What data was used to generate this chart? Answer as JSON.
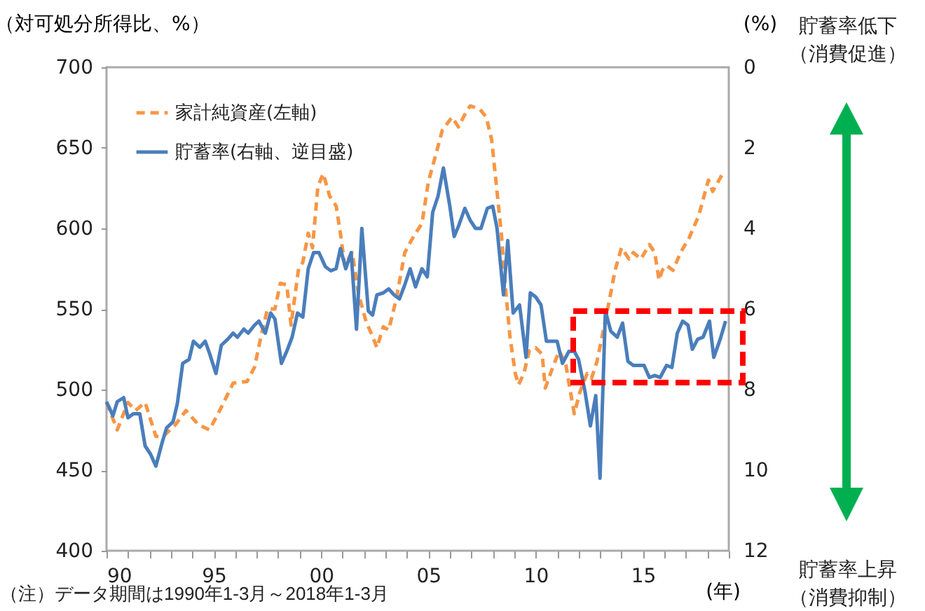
{
  "chart_data": {
    "type": "line",
    "ylabel": "（対可処分所得比、%）",
    "y2label": "(%)",
    "xlabel": "(年)",
    "xlim": [
      1990,
      2019
    ],
    "xticks": [
      {
        "value": 1990,
        "label": "90"
      },
      {
        "value": 1991,
        "label": null
      },
      {
        "value": 1992,
        "label": null
      },
      {
        "value": 1993,
        "label": null
      },
      {
        "value": 1994,
        "label": null
      },
      {
        "value": 1995,
        "label": "95"
      },
      {
        "value": 1996,
        "label": null
      },
      {
        "value": 1997,
        "label": null
      },
      {
        "value": 1998,
        "label": null
      },
      {
        "value": 1999,
        "label": null
      },
      {
        "value": 2000,
        "label": "00"
      },
      {
        "value": 2001,
        "label": null
      },
      {
        "value": 2002,
        "label": null
      },
      {
        "value": 2003,
        "label": null
      },
      {
        "value": 2004,
        "label": null
      },
      {
        "value": 2005,
        "label": "05"
      },
      {
        "value": 2006,
        "label": null
      },
      {
        "value": 2007,
        "label": null
      },
      {
        "value": 2008,
        "label": null
      },
      {
        "value": 2009,
        "label": null
      },
      {
        "value": 2010,
        "label": "10"
      },
      {
        "value": 2011,
        "label": null
      },
      {
        "value": 2012,
        "label": null
      },
      {
        "value": 2013,
        "label": null
      },
      {
        "value": 2014,
        "label": null
      },
      {
        "value": 2015,
        "label": "15"
      },
      {
        "value": 2016,
        "label": null
      },
      {
        "value": 2017,
        "label": null
      },
      {
        "value": 2018,
        "label": null
      },
      {
        "value": 2019,
        "label": null
      }
    ],
    "ylim": [
      400,
      700
    ],
    "yticks": [
      400,
      450,
      500,
      550,
      600,
      650,
      700
    ],
    "y2lim": [
      12,
      0
    ],
    "y2ticks": [
      0,
      2,
      4,
      6,
      8,
      10,
      12
    ],
    "grid": false,
    "legend": "top left",
    "annotations": [
      "貯蓄率低下（消費促進）",
      "貯蓄率上昇（消費抑制）",
      "（注）データ期間は1990年1-3月～2018年1-3月"
    ],
    "series": [
      {
        "name": "家計純資産(左軸)",
        "color": "#f79646",
        "line_style": "dashed",
        "x": [
          1990.0,
          1990.5,
          1991.0,
          1991.35,
          1991.8,
          1992.3,
          1992.65,
          1993.2,
          1993.7,
          1994.3,
          1994.8,
          1995.35,
          1995.9,
          1996.55,
          1996.9,
          1997.2,
          1997.5,
          1997.85,
          1998.1,
          1998.4,
          1998.6,
          1998.95,
          1999.15,
          1999.4,
          1999.6,
          1999.85,
          2000.1,
          2000.4,
          2000.7,
          2000.9,
          2001.1,
          2001.45,
          2001.75,
          2002.1,
          2002.4,
          2002.6,
          2002.9,
          2003.15,
          2003.5,
          2003.9,
          2004.35,
          2004.7,
          2005.0,
          2005.35,
          2005.65,
          2006.1,
          2006.4,
          2006.75,
          2006.95,
          2007.4,
          2007.7,
          2007.95,
          2008.15,
          2008.4,
          2008.6,
          2008.8,
          2009.05,
          2009.2,
          2009.45,
          2009.7,
          2010.0,
          2010.3,
          2010.45,
          2010.8,
          2011.1,
          2011.4,
          2011.55,
          2011.8,
          2012.05,
          2012.4,
          2012.6,
          2012.85,
          2013.05,
          2013.4,
          2013.7,
          2014.0,
          2014.35,
          2014.55,
          2014.9,
          2015.3,
          2015.55,
          2015.75,
          2015.9,
          2016.1,
          2016.4,
          2016.75,
          2017.15,
          2017.6,
          2018.05,
          2018.25,
          2018.8
        ],
        "values": [
          492,
          475,
          492,
          487,
          492,
          471,
          471,
          478,
          487,
          478,
          475,
          489,
          504,
          505,
          514,
          533,
          550,
          550,
          566,
          565,
          540,
          575,
          579,
          597,
          588,
          626,
          634,
          620,
          614,
          597,
          577,
          585,
          559,
          542,
          533,
          526,
          539,
          537,
          556,
          585,
          596,
          603,
          629,
          646,
          661,
          669,
          663,
          672,
          676,
          674,
          669,
          655,
          629,
          597,
          562,
          533,
          510,
          503,
          510,
          524,
          526,
          522,
          501,
          514,
          524,
          516,
          504,
          485,
          498,
          510,
          507,
          517,
          530,
          553,
          574,
          588,
          581,
          585,
          581,
          590,
          585,
          568,
          574,
          577,
          574,
          585,
          594,
          608,
          630,
          623,
          636
        ]
      },
      {
        "name": "貯蓄率(右軸、逆目盛)",
        "color": "#4a7ebb",
        "line_style": "solid",
        "axis": "y2",
        "x": [
          1990.0,
          1990.3,
          1990.5,
          1990.8,
          1991.0,
          1991.25,
          1991.55,
          1991.8,
          1992.05,
          1992.3,
          1992.6,
          1992.8,
          1993.1,
          1993.3,
          1993.55,
          1993.85,
          1994.05,
          1994.35,
          1994.6,
          1994.8,
          1995.1,
          1995.35,
          1995.65,
          1995.9,
          1996.1,
          1996.4,
          1996.6,
          1996.9,
          1997.1,
          1997.4,
          1997.65,
          1997.85,
          1998.15,
          1998.4,
          1998.65,
          1998.9,
          1999.15,
          1999.4,
          1999.65,
          1999.9,
          2000.2,
          2000.45,
          2000.7,
          2000.9,
          2001.15,
          2001.4,
          2001.65,
          2001.9,
          2002.2,
          2002.4,
          2002.6,
          2002.9,
          2003.15,
          2003.4,
          2003.65,
          2003.9,
          2004.15,
          2004.4,
          2004.7,
          2004.95,
          2005.2,
          2005.45,
          2005.7,
          2006.0,
          2006.2,
          2006.4,
          2006.7,
          2006.95,
          2007.2,
          2007.45,
          2007.75,
          2008.0,
          2008.2,
          2008.5,
          2008.7,
          2008.95,
          2009.25,
          2009.55,
          2009.75,
          2010.0,
          2010.25,
          2010.5,
          2010.75,
          2011.0,
          2011.25,
          2011.55,
          2011.8,
          2012.0,
          2012.3,
          2012.55,
          2012.8,
          2013.0,
          2013.25,
          2013.5,
          2013.8,
          2014.05,
          2014.3,
          2014.55,
          2015.05,
          2015.3,
          2015.55,
          2015.8,
          2016.1,
          2016.35,
          2016.6,
          2016.85,
          2017.1,
          2017.3,
          2017.55,
          2017.8,
          2018.1,
          2018.3,
          2018.6,
          2018.85
        ],
        "values": [
          8.3,
          8.65,
          8.3,
          8.2,
          8.7,
          8.6,
          8.6,
          9.4,
          9.6,
          9.9,
          9.3,
          8.95,
          8.8,
          8.35,
          7.35,
          7.25,
          6.8,
          6.95,
          6.8,
          7.1,
          7.6,
          6.9,
          6.75,
          6.6,
          6.7,
          6.5,
          6.6,
          6.4,
          6.3,
          6.6,
          6.1,
          6.25,
          7.35,
          7.05,
          6.7,
          6.1,
          6.2,
          5.0,
          4.6,
          4.6,
          4.95,
          5.05,
          5.0,
          4.5,
          5.0,
          4.6,
          6.5,
          4.0,
          6.05,
          6.15,
          5.65,
          5.6,
          5.5,
          5.65,
          5.75,
          5.4,
          5.0,
          5.45,
          5.0,
          5.2,
          3.6,
          3.2,
          2.5,
          3.45,
          4.2,
          3.95,
          3.5,
          3.8,
          4.0,
          4.0,
          3.5,
          3.45,
          4.0,
          5.65,
          4.3,
          6.1,
          5.9,
          7.2,
          5.6,
          5.7,
          5.9,
          6.8,
          6.8,
          6.8,
          7.35,
          7.05,
          7.05,
          7.25,
          8.05,
          8.9,
          8.15,
          10.2,
          6.05,
          6.55,
          6.7,
          6.35,
          7.3,
          7.4,
          7.4,
          7.7,
          7.65,
          7.7,
          7.4,
          7.45,
          6.6,
          6.3,
          6.4,
          7.0,
          6.75,
          6.7,
          6.3,
          7.2,
          6.75,
          6.3
        ]
      }
    ]
  }
}
